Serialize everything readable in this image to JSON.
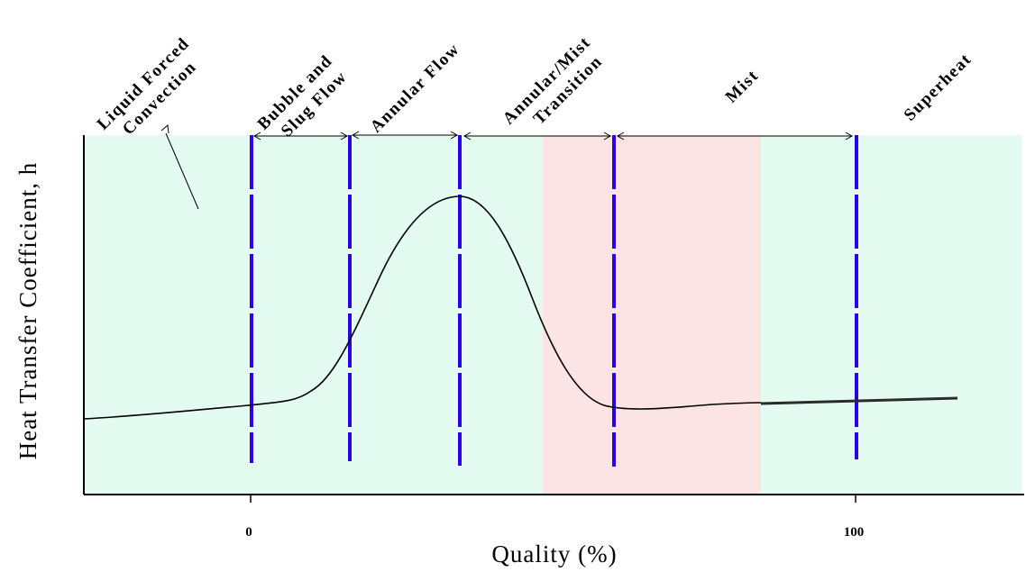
{
  "diagram": {
    "y_axis_label": "Heat Transfer Coefficient, h",
    "x_axis_label": "Quality (%)",
    "x_ticks": [
      "0",
      "100"
    ],
    "regions": [
      "Liquid Forced Convection",
      "Bubble and Slug Flow",
      "Annular Flow",
      "Annular/Mist Transition",
      "Mist",
      "Superheat"
    ],
    "colors": {
      "liquid_zone": "#e3fbf0",
      "mist_zone": "#fce3e4",
      "boundary_lines": "#2b00e6",
      "curve": "#000000"
    }
  }
}
